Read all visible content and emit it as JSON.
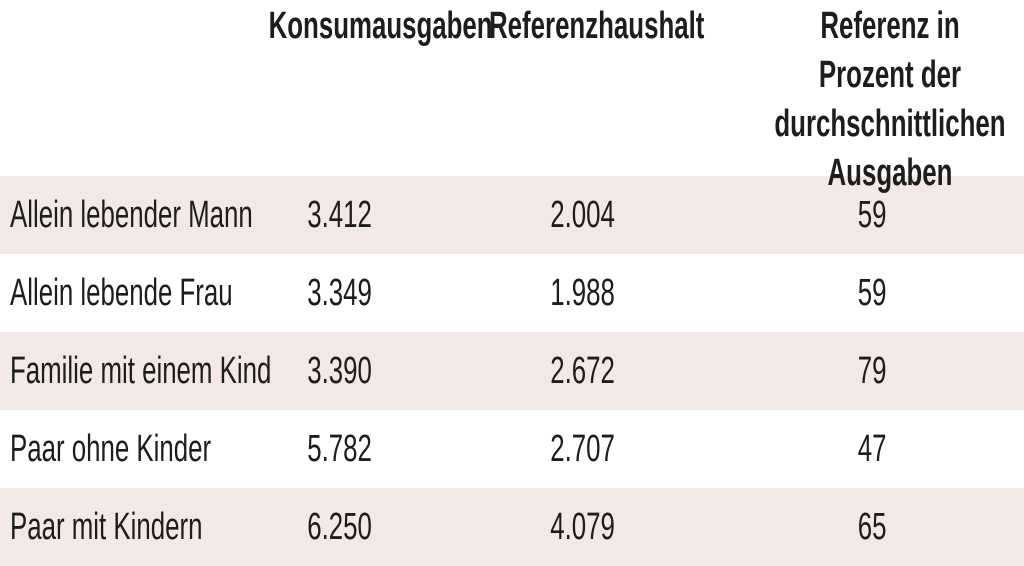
{
  "table": {
    "columns": [
      {
        "label": "Konsumausgaben"
      },
      {
        "label": "Referenzhaushalt"
      },
      {
        "label": "Referenz in Prozent der durchschnittlichen Ausgaben",
        "lines": [
          "Referenz in Prozent der",
          "durchschnittlichen",
          "Ausgaben"
        ]
      }
    ],
    "rows": [
      {
        "label": "Allein lebender Mann",
        "konsumausgaben": "3.412",
        "referenzhaushalt": "2.004",
        "referenz_prozent": "59"
      },
      {
        "label": "Allein lebende Frau",
        "konsumausgaben": "3.349",
        "referenzhaushalt": "1.988",
        "referenz_prozent": "59"
      },
      {
        "label": "Familie mit einem Kind",
        "konsumausgaben": "3.390",
        "referenzhaushalt": "2.672",
        "referenz_prozent": "79"
      },
      {
        "label": "Paar ohne Kinder",
        "konsumausgaben": "5.782",
        "referenzhaushalt": "2.707",
        "referenz_prozent": "47"
      },
      {
        "label": "Paar mit Kindern",
        "konsumausgaben": "6.250",
        "referenzhaushalt": "4.079",
        "referenz_prozent": "65"
      }
    ]
  },
  "colors": {
    "row_stripe": "#f2e9e6",
    "background": "#ffffff",
    "text": "#1d1d1b"
  },
  "chart_data": {
    "type": "table",
    "title": "",
    "categories": [
      "Allein lebender Mann",
      "Allein lebende Frau",
      "Familie mit einem Kind",
      "Paar ohne Kinder",
      "Paar mit Kindern"
    ],
    "series": [
      {
        "name": "Konsumausgaben",
        "values": [
          3412,
          3349,
          3390,
          5782,
          6250
        ]
      },
      {
        "name": "Referenzhaushalt",
        "values": [
          2004,
          1988,
          2672,
          2707,
          4079
        ]
      },
      {
        "name": "Referenz in Prozent der durchschnittlichen Ausgaben",
        "values": [
          59,
          59,
          79,
          47,
          65
        ]
      }
    ],
    "layout": "alternating row stripes, no gridlines, no borders, header bold condensed"
  }
}
